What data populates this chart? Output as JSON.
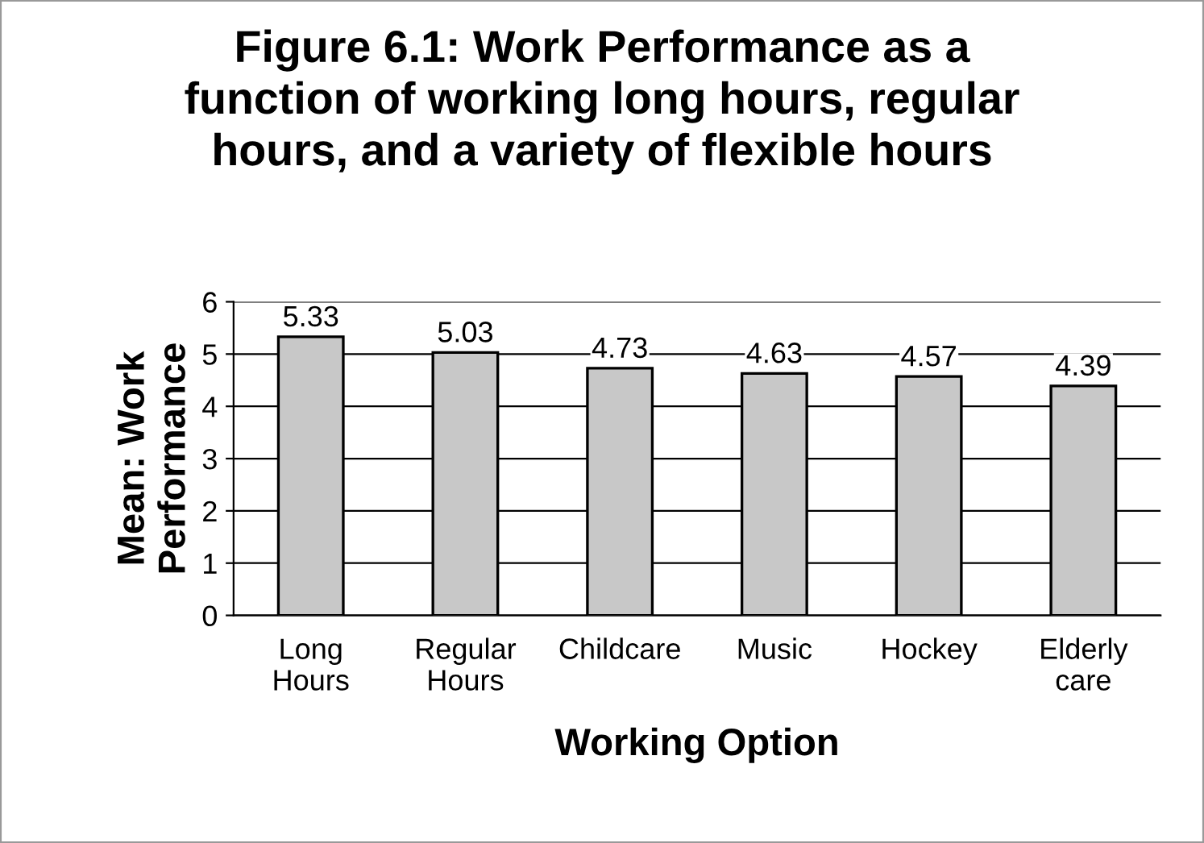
{
  "chart_data": {
    "type": "bar",
    "title": "Figure 6.1: Work Performance as a\nfunction of working long hours, regular\nhours, and a variety of flexible hours",
    "categories": [
      "Long\nHours",
      "Regular\nHours",
      "Childcare",
      "Music",
      "Hockey",
      "Elderly\ncare"
    ],
    "values": [
      5.33,
      5.03,
      4.73,
      4.63,
      4.57,
      4.39
    ],
    "color": "#c8c8c8",
    "xlabel": "Working Option",
    "ylabel": "Mean: Work\nPerformance",
    "ylim": [
      0,
      6
    ],
    "yticks": [
      0,
      1,
      2,
      3,
      4,
      5,
      6
    ],
    "grid": "y",
    "data_labels": true
  }
}
